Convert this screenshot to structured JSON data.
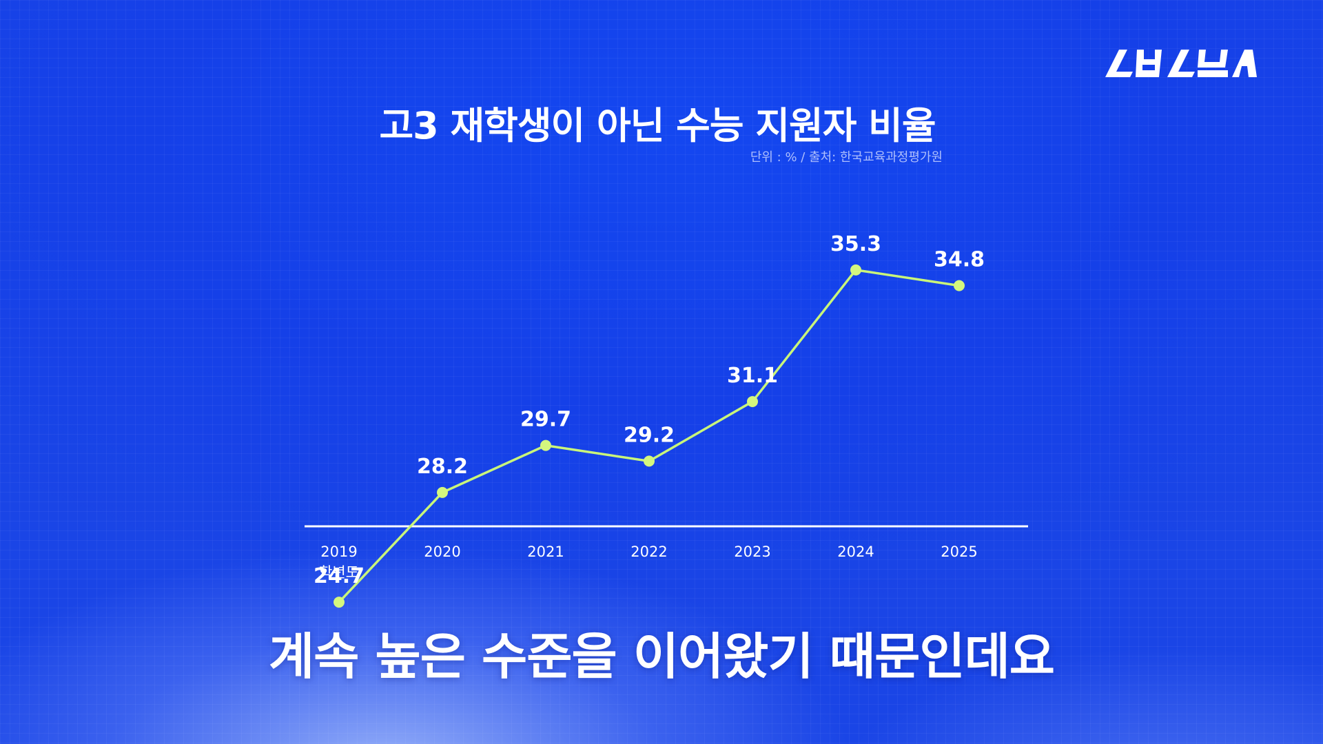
{
  "brand": {
    "logo_text": "스브스뉴스",
    "accent_color": "#d9f99d",
    "background_color": "#1540e8"
  },
  "header": {
    "title": "고3 재학생이 아닌 수능 지원자 비율",
    "source": "단위 : %  / 출처: 한국교육과정평가원"
  },
  "caption": {
    "text": "계속 높은 수준을 이어왔기 때문인데요"
  },
  "chart_data": {
    "type": "line",
    "title": "고3 재학생이 아닌 수능 지원자 비율",
    "unit": "단위 : %",
    "categories": [
      "2019",
      "2020",
      "2021",
      "2022",
      "2023",
      "2024",
      "2025"
    ],
    "first_category_suffix": "학년도",
    "values": [
      24.7,
      28.2,
      29.7,
      29.2,
      31.1,
      35.3,
      34.8
    ],
    "value_labels": [
      "24.7",
      "28.2",
      "29.7",
      "29.2",
      "31.1",
      "35.3",
      "34.8"
    ],
    "ylim": [
      20,
      40
    ],
    "grid": false,
    "legend": "none",
    "line_color": "#c9f57a",
    "point_color": "#d4f77e"
  }
}
